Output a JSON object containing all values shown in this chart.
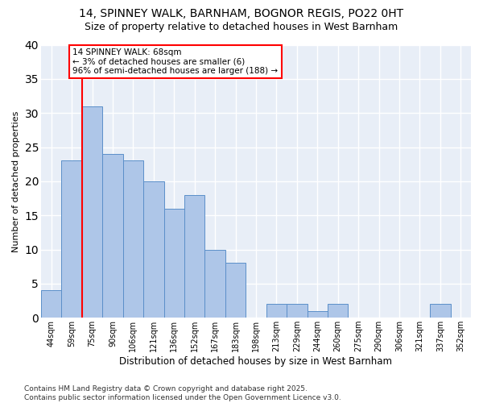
{
  "title1": "14, SPINNEY WALK, BARNHAM, BOGNOR REGIS, PO22 0HT",
  "title2": "Size of property relative to detached houses in West Barnham",
  "xlabel": "Distribution of detached houses by size in West Barnham",
  "ylabel": "Number of detached properties",
  "categories": [
    "44sqm",
    "59sqm",
    "75sqm",
    "90sqm",
    "106sqm",
    "121sqm",
    "136sqm",
    "152sqm",
    "167sqm",
    "183sqm",
    "198sqm",
    "213sqm",
    "229sqm",
    "244sqm",
    "260sqm",
    "275sqm",
    "290sqm",
    "306sqm",
    "321sqm",
    "337sqm",
    "352sqm"
  ],
  "values": [
    4,
    23,
    31,
    24,
    23,
    20,
    16,
    18,
    10,
    8,
    0,
    2,
    2,
    1,
    2,
    0,
    0,
    0,
    0,
    2,
    0
  ],
  "bar_color": "#aec6e8",
  "bar_edge_color": "#5b8fc9",
  "annotation_text": "14 SPINNEY WALK: 68sqm\n← 3% of detached houses are smaller (6)\n96% of semi-detached houses are larger (188) →",
  "annotation_box_color": "white",
  "annotation_box_edge_color": "red",
  "vline_x": 1.5,
  "vline_color": "red",
  "ylim": [
    0,
    40
  ],
  "yticks": [
    0,
    5,
    10,
    15,
    20,
    25,
    30,
    35,
    40
  ],
  "background_color": "#e8eef7",
  "grid_color": "white",
  "footnote": "Contains HM Land Registry data © Crown copyright and database right 2025.\nContains public sector information licensed under the Open Government Licence v3.0.",
  "title1_fontsize": 10,
  "title2_fontsize": 9,
  "xlabel_fontsize": 8.5,
  "ylabel_fontsize": 8,
  "tick_fontsize": 7,
  "annotation_fontsize": 7.5,
  "footnote_fontsize": 6.5
}
